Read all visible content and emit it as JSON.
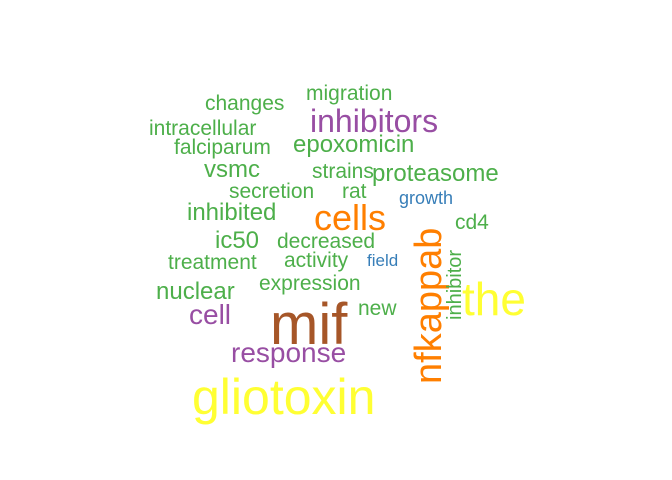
{
  "chart_data": {
    "type": "wordcloud",
    "title": "",
    "colors": {
      "green": "#4daf4a",
      "purple": "#984ea3",
      "orange": "#ff7f00",
      "brown": "#a65628",
      "yellow": "#ffff33",
      "blue": "#377eb8"
    },
    "words": [
      {
        "text": "gliotoxin",
        "color": "yellow",
        "orientation": "horizontal"
      },
      {
        "text": "mif",
        "color": "brown",
        "orientation": "horizontal"
      },
      {
        "text": "the",
        "color": "yellow",
        "orientation": "horizontal"
      },
      {
        "text": "nfkappab",
        "color": "orange",
        "orientation": "vertical"
      },
      {
        "text": "cells",
        "color": "orange",
        "orientation": "horizontal"
      },
      {
        "text": "inhibitors",
        "color": "purple",
        "orientation": "horizontal"
      },
      {
        "text": "response",
        "color": "purple",
        "orientation": "horizontal"
      },
      {
        "text": "cell",
        "color": "purple",
        "orientation": "horizontal"
      },
      {
        "text": "proteasome",
        "color": "green",
        "orientation": "horizontal"
      },
      {
        "text": "epoxomicin",
        "color": "green",
        "orientation": "horizontal"
      },
      {
        "text": "nuclear",
        "color": "green",
        "orientation": "horizontal"
      },
      {
        "text": "inhibited",
        "color": "green",
        "orientation": "horizontal"
      },
      {
        "text": "ic50",
        "color": "green",
        "orientation": "horizontal"
      },
      {
        "text": "vsmc",
        "color": "green",
        "orientation": "horizontal"
      },
      {
        "text": "migration",
        "color": "green",
        "orientation": "horizontal"
      },
      {
        "text": "changes",
        "color": "green",
        "orientation": "horizontal"
      },
      {
        "text": "intracellular",
        "color": "green",
        "orientation": "horizontal"
      },
      {
        "text": "falciparum",
        "color": "green",
        "orientation": "horizontal"
      },
      {
        "text": "strains",
        "color": "green",
        "orientation": "horizontal"
      },
      {
        "text": "secretion",
        "color": "green",
        "orientation": "horizontal"
      },
      {
        "text": "rat",
        "color": "green",
        "orientation": "horizontal"
      },
      {
        "text": "decreased",
        "color": "green",
        "orientation": "horizontal"
      },
      {
        "text": "treatment",
        "color": "green",
        "orientation": "horizontal"
      },
      {
        "text": "activity",
        "color": "green",
        "orientation": "horizontal"
      },
      {
        "text": "expression",
        "color": "green",
        "orientation": "horizontal"
      },
      {
        "text": "new",
        "color": "green",
        "orientation": "horizontal"
      },
      {
        "text": "inhibitor",
        "color": "green",
        "orientation": "vertical"
      },
      {
        "text": "cd4",
        "color": "green",
        "orientation": "horizontal"
      },
      {
        "text": "growth",
        "color": "blue",
        "orientation": "horizontal"
      },
      {
        "text": "field",
        "color": "blue",
        "orientation": "horizontal"
      }
    ]
  }
}
